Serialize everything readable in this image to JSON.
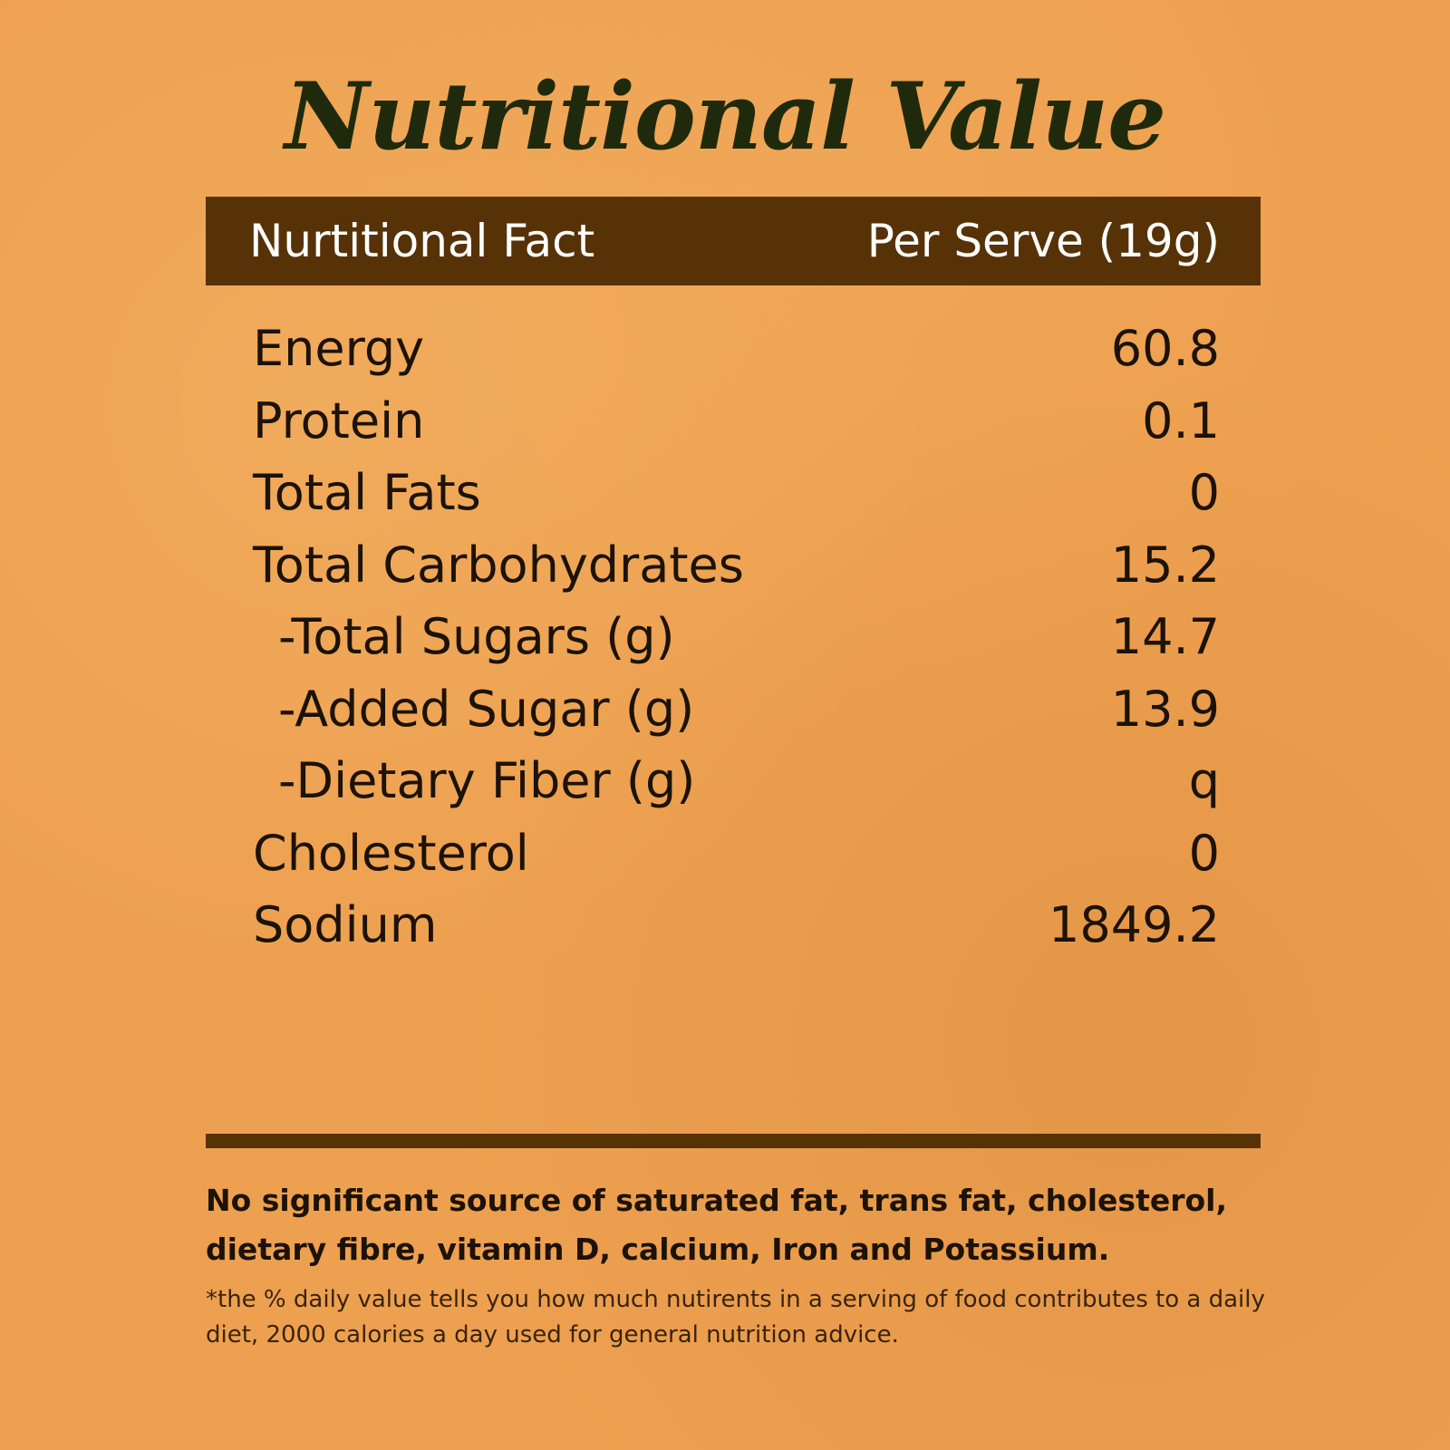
{
  "title": "Nutritional Value",
  "header": {
    "left": "Nurtitional Fact",
    "right": "Per Serve (19g)"
  },
  "rows": [
    {
      "label": "Energy",
      "value": "60.8"
    },
    {
      "label": "Protein",
      "value": "0.1"
    },
    {
      "label": "Total Fats",
      "value": "0"
    },
    {
      "label": "Total Carbohydrates",
      "value": "15.2"
    },
    {
      "label": "-Total Sugars (g)",
      "value": "14.7"
    },
    {
      "label": "-Added Sugar (g)",
      "value": "13.9"
    },
    {
      "label": "-Dietary Fiber (g)",
      "value": "q"
    },
    {
      "label": "Cholesterol",
      "value": "0"
    },
    {
      "label": "Sodium",
      "value": "1849.2"
    }
  ],
  "note": "No significant source of saturated fat, trans fat, cholesterol, dietary fibre, vitamin D, calcium, Iron and Potassium.",
  "footnote": "*the % daily value tells you how much nutirents in a serving of food contributes to a daily diet, 2000 calories a day used for general nutrition advice.",
  "colors": {
    "background": "#EDA04F",
    "header_bar": "#573206",
    "title": "#1f2a0d",
    "text": "#1c1206"
  }
}
